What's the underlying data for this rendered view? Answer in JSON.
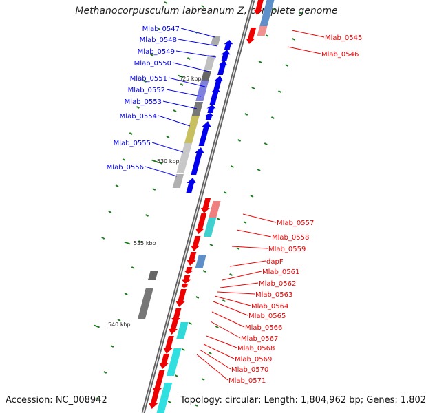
{
  "title": "Methanocorpusculum labreanum Z, complete genome",
  "footer": {
    "accession": "Accession: NC_008942",
    "topology": "Topology: circular; Length: 1,804,962 bp; Genes: 1,802"
  },
  "scale_labels": [
    "525 kbp",
    "530 kbp",
    "535 kbp",
    "540 kbp"
  ],
  "colors": {
    "forward": "#0000ee",
    "reverse": "#ee0000",
    "backbone": "#777777",
    "tick": "#1a7a1a"
  },
  "left_genes": [
    "Mlab_0547",
    "Mlab_0548",
    "Mlab_0549",
    "Mlab_0550",
    "Mlab_0551",
    "Mlab_0552",
    "Mlab_0553",
    "Mlab_0554",
    "Mlab_0555",
    "Mlab_0556"
  ],
  "right_genes": [
    "Mlab_0545",
    "Mlab_0546",
    "Mlab_0557",
    "Mlab_0558",
    "Mlab_0559",
    "dapF",
    "Mlab_0561",
    "Mlab_0562",
    "Mlab_0563",
    "Mlab_0564",
    "Mlab_0565",
    "Mlab_0566",
    "Mlab_0567",
    "Mlab_0568",
    "Mlab_0569",
    "Mlab_0570",
    "Mlab_0571"
  ]
}
